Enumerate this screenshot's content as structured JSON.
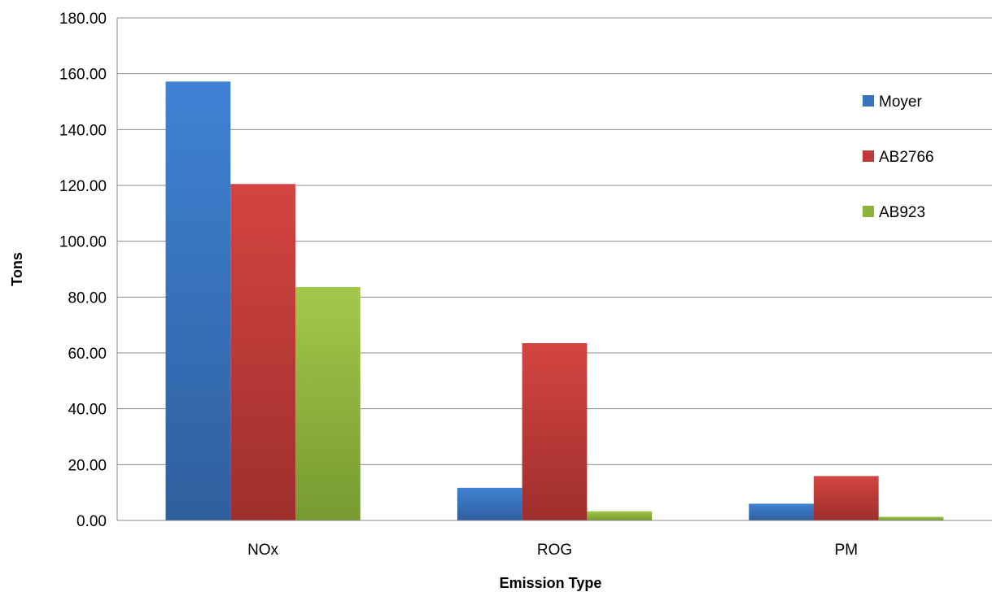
{
  "chart_data": {
    "type": "bar",
    "title": "",
    "xlabel": "Emission Type",
    "ylabel": "Tons",
    "categories": [
      "NOx",
      "ROG",
      "PM"
    ],
    "series": [
      {
        "name": "Moyer",
        "values": [
          157.2,
          11.7,
          6.0
        ],
        "color": "#3a72bf"
      },
      {
        "name": "AB2766",
        "values": [
          120.5,
          63.5,
          15.9
        ],
        "color": "#bf3a38"
      },
      {
        "name": "AB923",
        "values": [
          83.6,
          3.3,
          1.3
        ],
        "color": "#8cb43c"
      }
    ],
    "ylim": [
      0,
      180
    ],
    "yticks": [
      "0.00",
      "20.00",
      "40.00",
      "60.00",
      "80.00",
      "100.00",
      "120.00",
      "140.00",
      "160.00",
      "180.00"
    ],
    "grid": true,
    "legend": "right"
  }
}
